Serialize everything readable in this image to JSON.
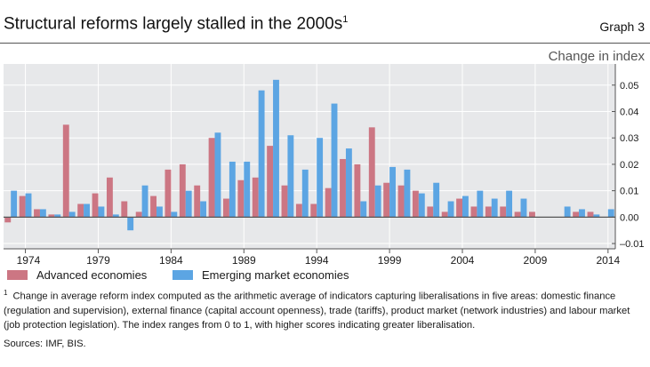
{
  "header": {
    "title": "Structural reforms largely stalled in the 2000s",
    "title_footnote_mark": "1",
    "graph_label": "Graph 3"
  },
  "chart_data": {
    "type": "bar",
    "unit_label": "Change in index",
    "x": [
      1973,
      1974,
      1975,
      1976,
      1977,
      1978,
      1979,
      1980,
      1981,
      1982,
      1983,
      1984,
      1985,
      1986,
      1987,
      1988,
      1989,
      1990,
      1991,
      1992,
      1993,
      1994,
      1995,
      1996,
      1997,
      1998,
      1999,
      2000,
      2001,
      2002,
      2003,
      2004,
      2005,
      2006,
      2007,
      2008,
      2009,
      2010,
      2011,
      2012,
      2013,
      2014
    ],
    "x_tick_labels": [
      "1974",
      "1979",
      "1984",
      "1989",
      "1994",
      "1999",
      "2004",
      "2009",
      "2014"
    ],
    "x_tick_values": [
      1974,
      1979,
      1984,
      1989,
      1994,
      1999,
      2004,
      2009,
      2014
    ],
    "ylim": [
      -0.012,
      0.058
    ],
    "y_ticks": [
      -0.01,
      0.0,
      0.01,
      0.02,
      0.03,
      0.04,
      0.05
    ],
    "y_tick_labels": [
      "–0.01",
      "0.00",
      "0.01",
      "0.02",
      "0.03",
      "0.04",
      "0.05"
    ],
    "series": [
      {
        "name": "Advanced economies",
        "color": "#cc7683",
        "values": [
          -0.002,
          0.008,
          0.003,
          0.001,
          0.035,
          0.005,
          0.009,
          0.015,
          0.006,
          0.002,
          0.008,
          0.018,
          0.02,
          0.012,
          0.03,
          0.007,
          0.014,
          0.015,
          0.027,
          0.012,
          0.005,
          0.005,
          0.011,
          0.022,
          0.02,
          0.034,
          0.013,
          0.012,
          0.01,
          0.004,
          0.002,
          0.007,
          0.004,
          0.004,
          0.004,
          0.002,
          0.002,
          0.0,
          0.0,
          0.002,
          0.002,
          0.0
        ]
      },
      {
        "name": "Emerging market economies",
        "color": "#5ca5e3",
        "values": [
          0.01,
          0.009,
          0.003,
          0.001,
          0.002,
          0.005,
          0.004,
          0.001,
          -0.005,
          0.012,
          0.004,
          0.002,
          0.01,
          0.006,
          0.032,
          0.021,
          0.021,
          0.048,
          0.052,
          0.031,
          0.018,
          0.03,
          0.043,
          0.026,
          0.006,
          0.012,
          0.019,
          0.018,
          0.009,
          0.013,
          0.006,
          0.008,
          0.01,
          0.007,
          0.01,
          0.007,
          0.0,
          0.0,
          0.004,
          0.003,
          0.001,
          0.003
        ]
      }
    ]
  },
  "legend": {
    "items": [
      {
        "label": "Advanced economies",
        "color": "#cc7683"
      },
      {
        "label": "Emerging market economies",
        "color": "#5ca5e3"
      }
    ]
  },
  "footnote": {
    "mark": "1",
    "text": "Change in average reform index computed as the arithmetic average of indicators capturing liberalisations in five areas: domestic finance (regulation and supervision), external finance (capital account openness), trade (tariffs), product market (network industries) and labour market (job protection legislation). The index ranges from 0 to 1, with higher scores indicating greater liberalisation."
  },
  "sources": "Sources: IMF, BIS."
}
